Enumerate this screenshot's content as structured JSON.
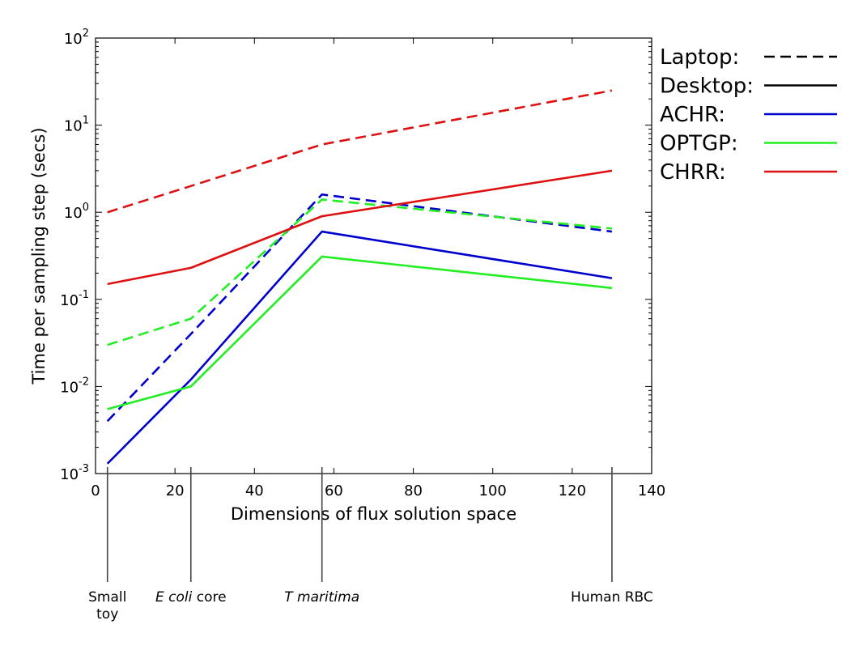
{
  "chart_data": {
    "type": "line",
    "title": "",
    "xlabel": "Dimensions of flux solution space",
    "ylabel": "Time per sampling step (secs)",
    "xlim": [
      0,
      140
    ],
    "ylim": [
      0.001,
      100
    ],
    "yscale": "log",
    "grid": false,
    "x_ticks": [
      "0",
      "20",
      "40",
      "60",
      "80",
      "100",
      "120",
      "140"
    ],
    "y_ticks": [
      {
        "base": "10",
        "exp": "-3"
      },
      {
        "base": "10",
        "exp": "-2"
      },
      {
        "base": "10",
        "exp": "-1"
      },
      {
        "base": "10",
        "exp": "0"
      },
      {
        "base": "10",
        "exp": "1"
      },
      {
        "base": "10",
        "exp": "2"
      }
    ],
    "x": [
      3,
      24,
      57,
      130
    ],
    "series": [
      {
        "method": "ACHR",
        "machine": "Laptop",
        "color": "#0000cc",
        "dash": true,
        "values": [
          0.004,
          0.04,
          1.6,
          0.6
        ]
      },
      {
        "method": "OPTGP",
        "machine": "Laptop",
        "color": "#22ee22",
        "dash": true,
        "values": [
          0.03,
          0.06,
          1.4,
          0.65
        ]
      },
      {
        "method": "CHRR",
        "machine": "Laptop",
        "color": "#dd1111",
        "dash": true,
        "values": [
          1.0,
          2.0,
          6.0,
          25.0
        ]
      },
      {
        "method": "ACHR",
        "machine": "Desktop",
        "color": "#0000cc",
        "dash": false,
        "values": [
          0.0013,
          0.012,
          0.6,
          0.175
        ]
      },
      {
        "method": "OPTGP",
        "machine": "Desktop",
        "color": "#22ee22",
        "dash": false,
        "values": [
          0.0055,
          0.01,
          0.31,
          0.135
        ]
      },
      {
        "method": "CHRR",
        "machine": "Desktop",
        "color": "#dd1111",
        "dash": false,
        "values": [
          0.15,
          0.23,
          0.9,
          3.0
        ]
      }
    ],
    "legend_position": "right",
    "legend": [
      {
        "label": "Laptop:",
        "color": "#000000",
        "dash": true
      },
      {
        "label": "Desktop:",
        "color": "#000000",
        "dash": false
      },
      {
        "label": "ACHR:",
        "color": "#0000cc",
        "dash": false
      },
      {
        "label": "OPTGP:",
        "color": "#22ee22",
        "dash": false
      },
      {
        "label": "CHRR:",
        "color": "#dd1111",
        "dash": false
      }
    ],
    "model_markers": [
      {
        "x": 3,
        "lines": [
          "Small",
          "toy"
        ],
        "italic_part": ""
      },
      {
        "x": 24,
        "lines": [
          "core"
        ],
        "italic_part": "E coli"
      },
      {
        "x": 57,
        "lines": [
          ""
        ],
        "italic_part": "T maritima"
      },
      {
        "x": 130,
        "lines": [
          "Human RBC"
        ],
        "italic_part": ""
      }
    ]
  }
}
